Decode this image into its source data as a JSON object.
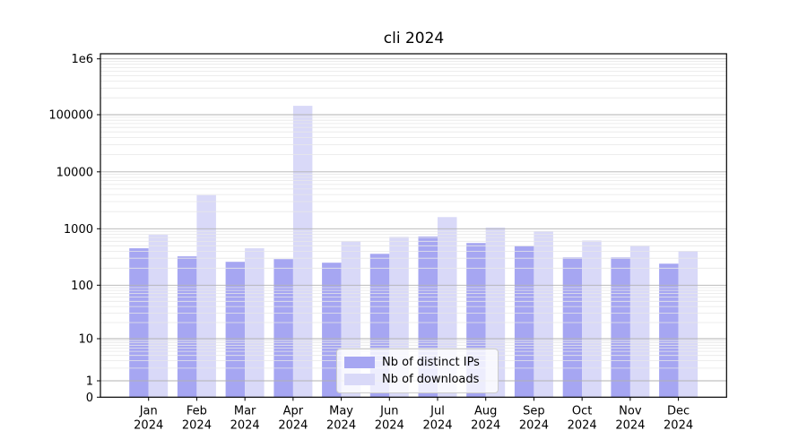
{
  "title": "cli 2024",
  "chart_data": {
    "type": "bar",
    "title": "cli 2024",
    "categories": [
      "Jan",
      "Feb",
      "Mar",
      "Apr",
      "May",
      "Jun",
      "Jul",
      "Aug",
      "Sep",
      "Oct",
      "Nov",
      "Dec"
    ],
    "category_year": "2024",
    "series": [
      {
        "name": "Nb of distinct IPs",
        "color": "#a6a6f2",
        "values": [
          450,
          325,
          260,
          290,
          250,
          360,
          730,
          560,
          490,
          310,
          310,
          240
        ]
      },
      {
        "name": "Nb of downloads",
        "color": "#d9d9f8",
        "values": [
          780,
          3900,
          450,
          144000,
          600,
          720,
          1600,
          1050,
          900,
          620,
          500,
          400
        ]
      }
    ],
    "yscale": "symlog",
    "ylim": [
      0,
      1000000
    ],
    "ytick_labels": [
      "0",
      "1",
      "10",
      "100",
      "1000",
      "10000",
      "100000",
      "1e6"
    ],
    "ytick_values": [
      0,
      1,
      10,
      100,
      1000,
      10000,
      100000,
      1000000
    ],
    "grid": "horizontal major and minor, drawn over bars",
    "legend_position": "lower center",
    "colors": {
      "major_grid": "#b2b2b2",
      "minor_grid": "#e7e7e7",
      "spine": "#000000",
      "text": "#000000"
    }
  }
}
